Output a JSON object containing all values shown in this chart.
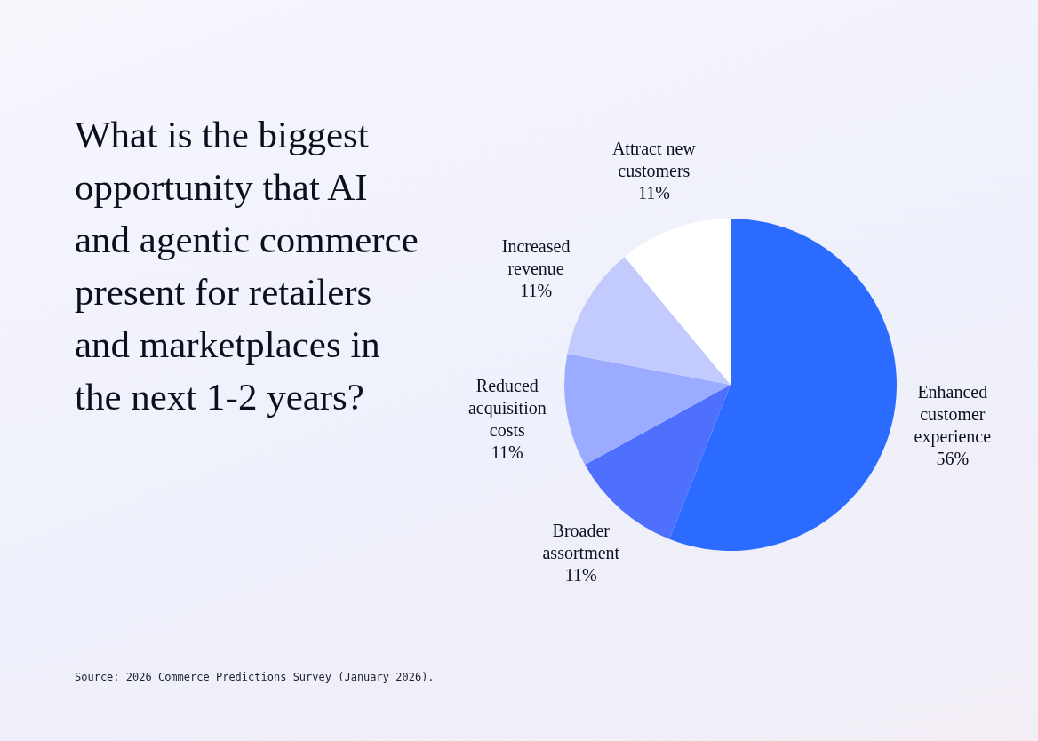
{
  "chart_data": {
    "type": "pie",
    "title": "What is the biggest opportunity that AI and agentic commerce present for retailers and marketplaces in the next 1-2 years?",
    "categories": [
      "Enhanced customer experience",
      "Broader assortment",
      "Reduced acquisition costs",
      "Increased revenue",
      "Attract new customers"
    ],
    "values": [
      56,
      11,
      11,
      11,
      11
    ],
    "value_labels": [
      "56%",
      "11%",
      "11%",
      "11%",
      "11%"
    ],
    "colors": [
      "#2b6bff",
      "#4f6ffd",
      "#9babff",
      "#c3cbfe",
      "#ffffff"
    ],
    "annotations": [
      "Source: 2026 Commerce Predictions Survey (January 2026)."
    ]
  }
}
